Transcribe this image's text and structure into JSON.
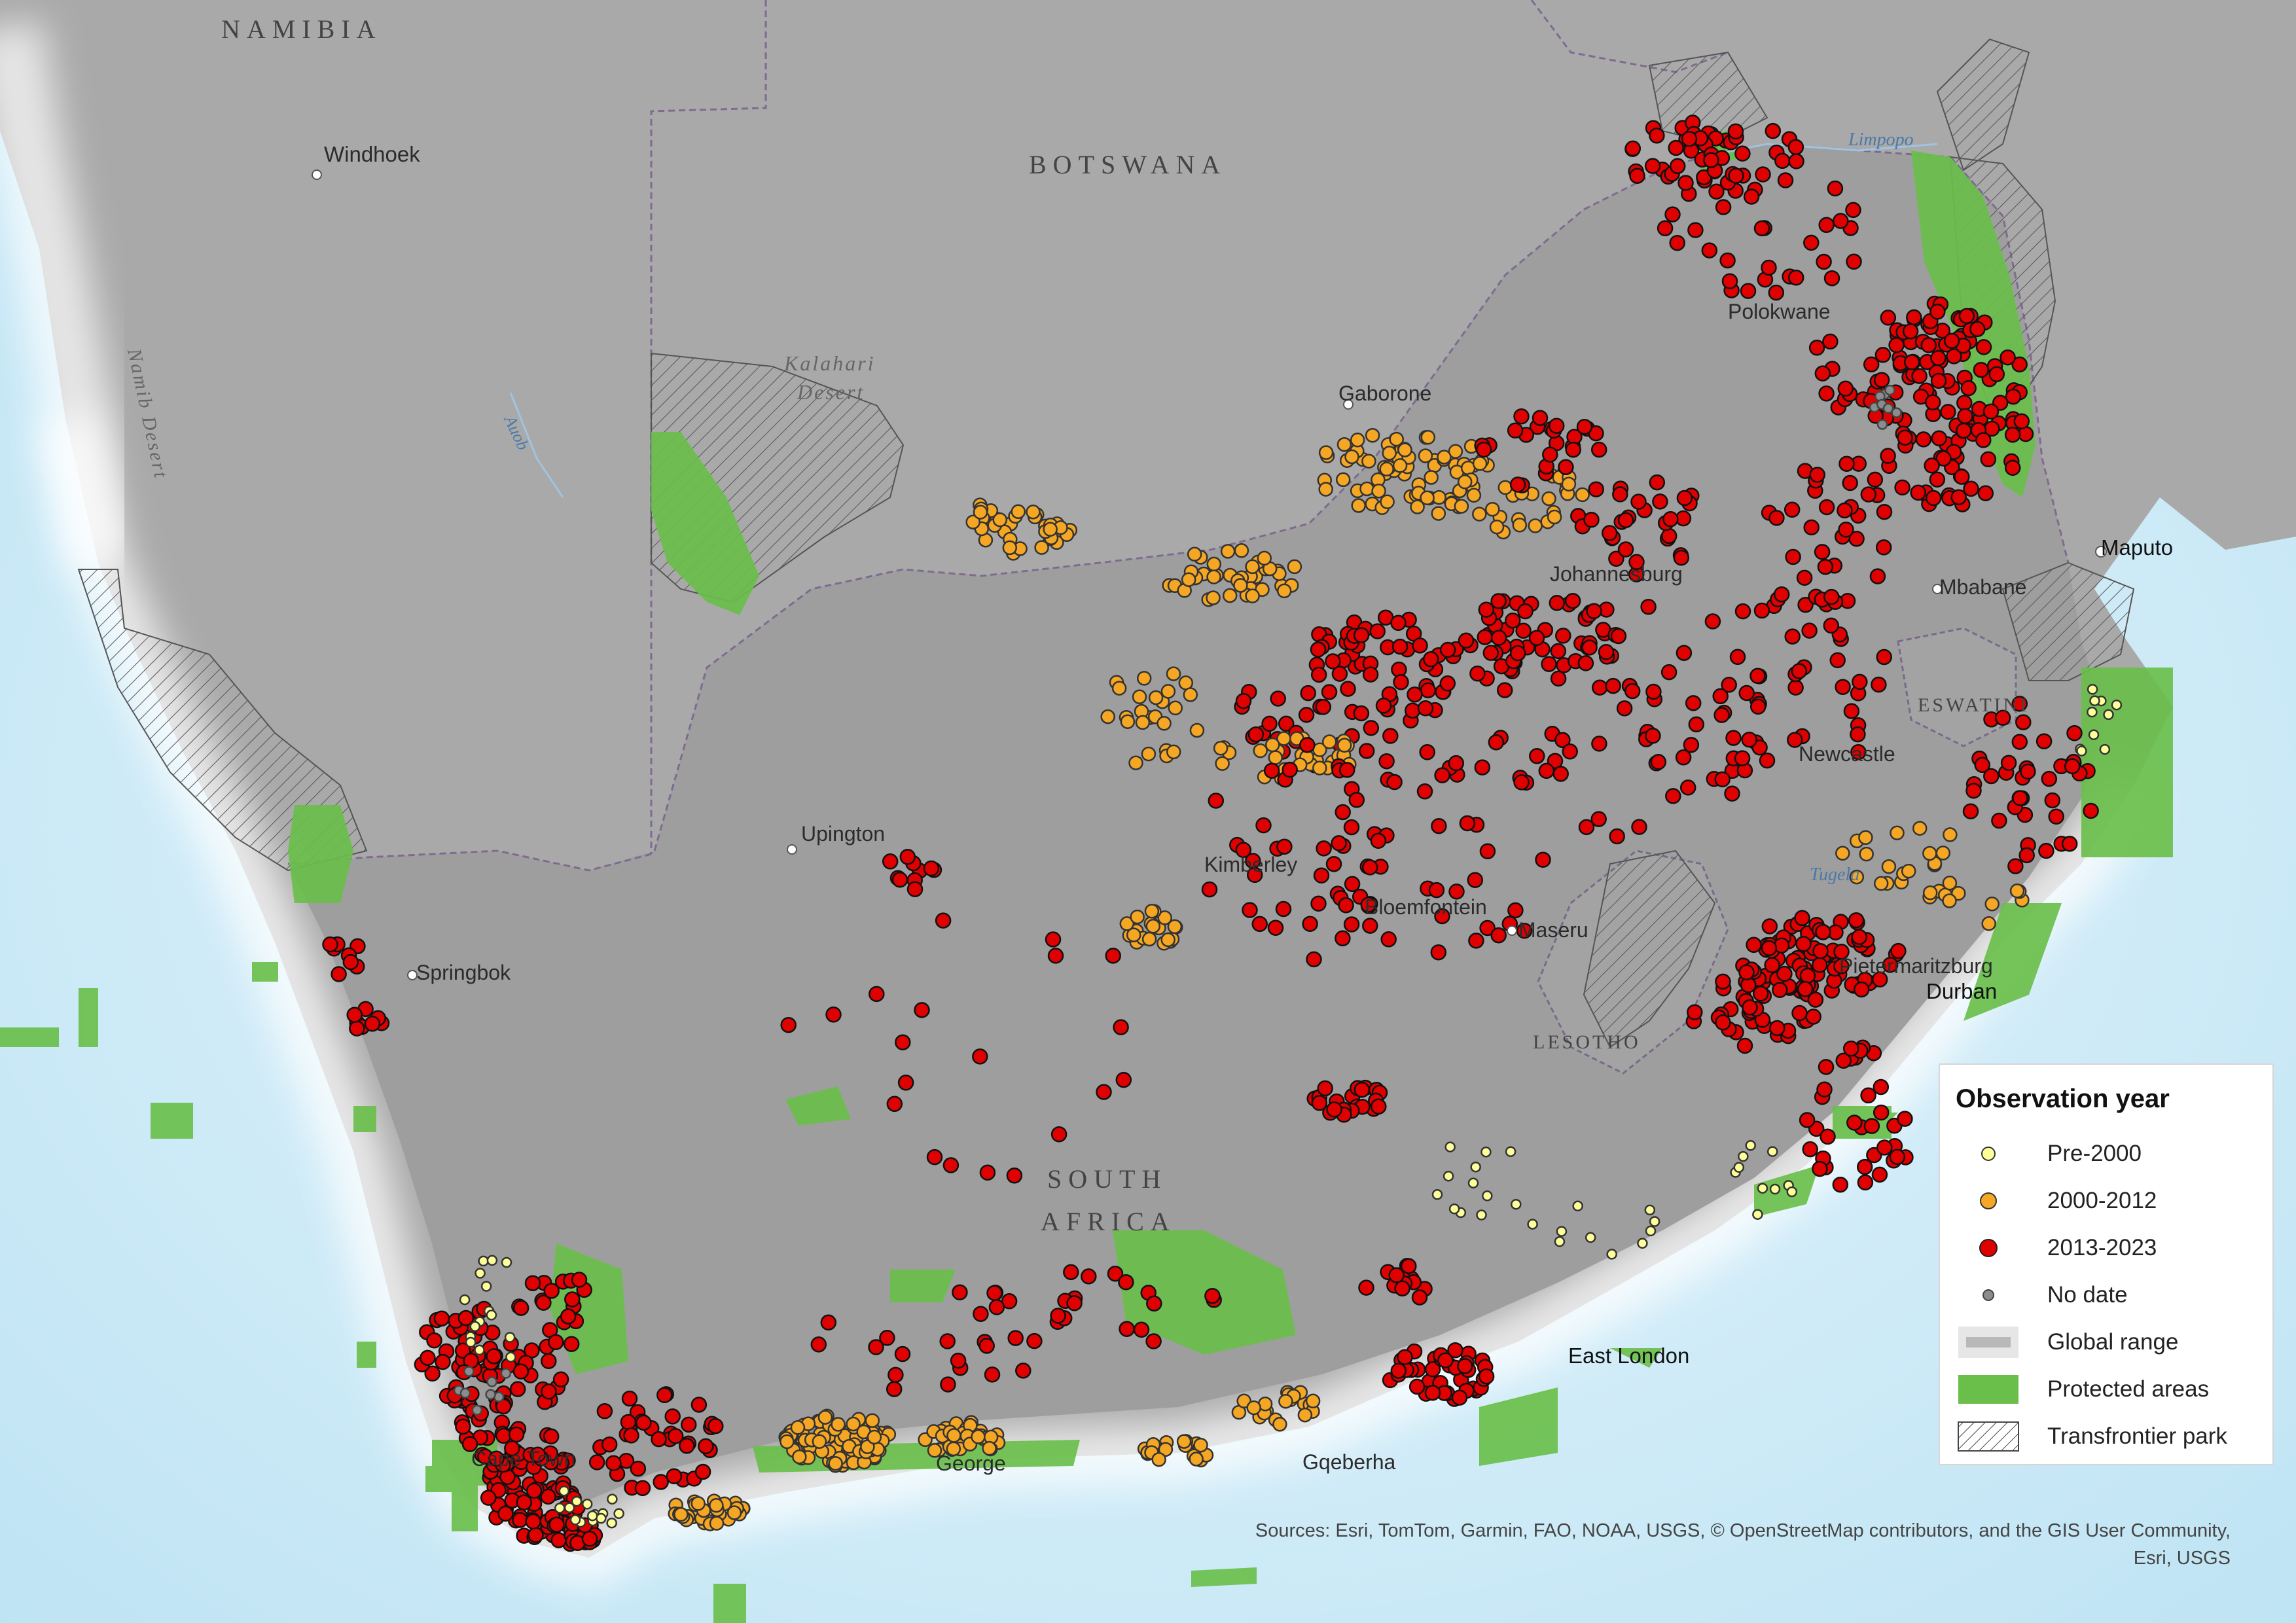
{
  "map": {
    "country_labels": {
      "namibia": "NAMIBIA",
      "botswana": "BOTSWANA",
      "south_africa_1": "SOUTH",
      "south_africa_2": "AFRICA",
      "lesotho": "LESOTHO",
      "eswatini": "ESWATINI"
    },
    "city_labels": {
      "windhoek": "Windhoek",
      "gaborone": "Gaborone",
      "polokwane": "Polokwane",
      "johannesburg": "Johannesburg",
      "mbabane": "Mbabane",
      "maputo": "Maputo",
      "newcastle": "Newcastle",
      "upington": "Upington",
      "kimberley": "Kimberley",
      "bloemfontein": "Bloemfontein",
      "maseru": "Maseru",
      "springbok": "Springbok",
      "pietermaritzburg": "Pietermaritzburg",
      "durban": "Durban",
      "east_london": "East London",
      "gqeberha": "Gqeberha",
      "cape_town": "Cape Town",
      "george": "George"
    },
    "natural_labels": {
      "kalahari_1": "Kalahari",
      "kalahari_2": "Desert",
      "namib": "Namib Desert",
      "auob": "Auob",
      "limpopo": "Limpopo",
      "tugela": "Tugela"
    },
    "colors": {
      "land": "#a6a6a6",
      "sea": "#cfe9f5",
      "protected": "#6abf4b",
      "pre_2000": "#ffff99",
      "y2000_2012": "#f5a623",
      "y2013_2023": "#e00000",
      "no_date": "#8c8c8c"
    }
  },
  "legend": {
    "title": "Observation year",
    "items": [
      {
        "label": "Pre-2000",
        "symbol": "pre-2000-dot",
        "color": "#ffff99"
      },
      {
        "label": "2000-2012",
        "symbol": "2000-2012-dot",
        "color": "#f5a623"
      },
      {
        "label": "2013-2023",
        "symbol": "2013-2023-dot",
        "color": "#e00000"
      },
      {
        "label": "No date",
        "symbol": "no-date-dot",
        "color": "#8c8c8c"
      },
      {
        "label": "Global range",
        "symbol": "global-range-swatch"
      },
      {
        "label": "Protected areas",
        "symbol": "protected-area-swatch",
        "color": "#6abf4b"
      },
      {
        "label": "Transfrontier park",
        "symbol": "hatch-swatch"
      }
    ]
  },
  "attribution": {
    "line1": "Sources: Esri, TomTom, Garmin, FAO, NOAA, USGS, © OpenStreetMap contributors, and the GIS User Community,",
    "line2": "Esri, USGS"
  }
}
